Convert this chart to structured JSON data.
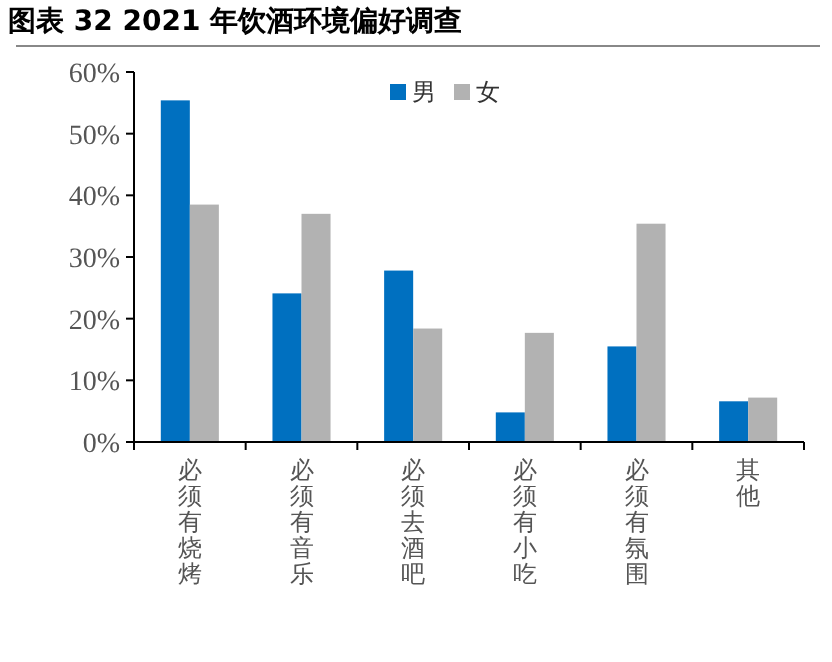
{
  "chart_data": {
    "type": "bar",
    "title": "图表 32 2021 年饮酒环境偏好调查",
    "categories": [
      "必须有烧烤",
      "必须有音乐",
      "必须去酒吧",
      "必须有小吃",
      "必须有氛围",
      "其他"
    ],
    "series": [
      {
        "name": "男",
        "color": "#0070c0",
        "values": [
          55.4,
          24.1,
          27.8,
          4.8,
          15.5,
          6.6
        ]
      },
      {
        "name": "女",
        "color": "#b2b2b2",
        "values": [
          38.5,
          37.0,
          18.4,
          17.7,
          35.4,
          7.2
        ]
      }
    ],
    "ylim": [
      0,
      60
    ],
    "yticks": [
      {
        "value": 0,
        "label": "0%"
      },
      {
        "value": 10,
        "label": "10%"
      },
      {
        "value": 20,
        "label": "20%"
      },
      {
        "value": 30,
        "label": "30%"
      },
      {
        "value": 40,
        "label": "40%"
      },
      {
        "value": 50,
        "label": "50%"
      },
      {
        "value": 60,
        "label": "60%"
      }
    ],
    "legend": "top",
    "grid": false
  }
}
